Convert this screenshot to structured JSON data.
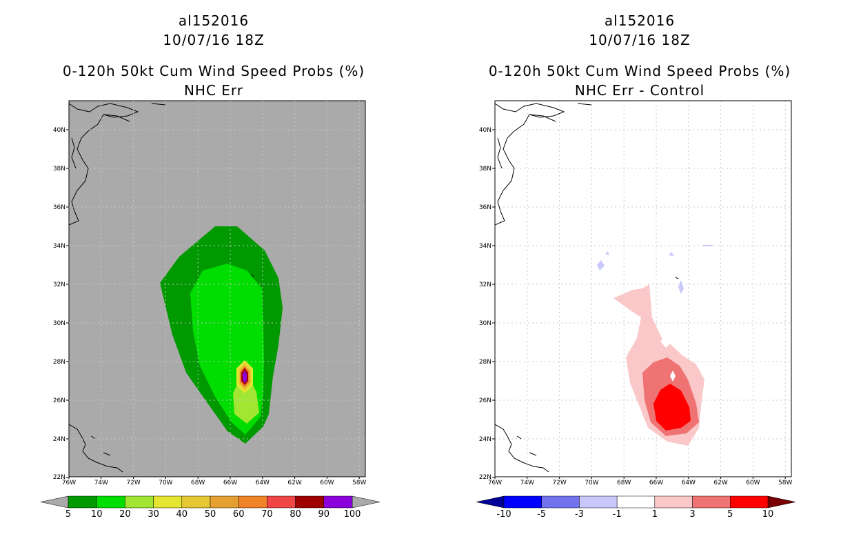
{
  "left_panel": {
    "storm_id": "al152016",
    "datetime": "10/07/16 18Z",
    "title": "0-120h 50kt Cum Wind Speed Probs (%)",
    "subtitle": "NHC Err",
    "background_color": "#aaaaaa",
    "lat_labels": [
      "40N",
      "38N",
      "36N",
      "34N",
      "32N",
      "30N",
      "28N",
      "26N",
      "24N",
      "22N"
    ],
    "lon_labels": [
      "76W",
      "74W",
      "72W",
      "70W",
      "68W",
      "66W",
      "64W",
      "62W",
      "60W",
      "58W"
    ],
    "colorbar": {
      "colors": [
        "#009900",
        "#00dd00",
        "#a0e632",
        "#e6e632",
        "#e6c832",
        "#e6a032",
        "#f08228",
        "#f04646",
        "#a00000",
        "#8c00dc"
      ],
      "labels": [
        "5",
        "10",
        "20",
        "30",
        "40",
        "50",
        "60",
        "70",
        "80",
        "90",
        "100"
      ],
      "under_color": "#aaaaaa",
      "over_color": "#aaaaaa"
    }
  },
  "right_panel": {
    "storm_id": "al152016",
    "datetime": "10/07/16 18Z",
    "title": "0-120h 50kt Cum Wind Speed Probs (%)",
    "subtitle": "NHC Err - Control",
    "background_color": "#ffffff",
    "lat_labels": [
      "40N",
      "38N",
      "36N",
      "34N",
      "32N",
      "30N",
      "28N",
      "26N",
      "24N",
      "22N"
    ],
    "lon_labels": [
      "76W",
      "74W",
      "72W",
      "70W",
      "68W",
      "66W",
      "64W",
      "62W",
      "60W",
      "58W"
    ],
    "colorbar": {
      "colors": [
        "#0000ff",
        "#7373f0",
        "#c8c8fa",
        "#ffffff",
        "#fac8c8",
        "#f07373",
        "#ff0000"
      ],
      "labels": [
        "-10",
        "-5",
        "-3",
        "-1",
        "1",
        "3",
        "5",
        "10"
      ],
      "under_color": "#000096",
      "over_color": "#780000"
    }
  }
}
